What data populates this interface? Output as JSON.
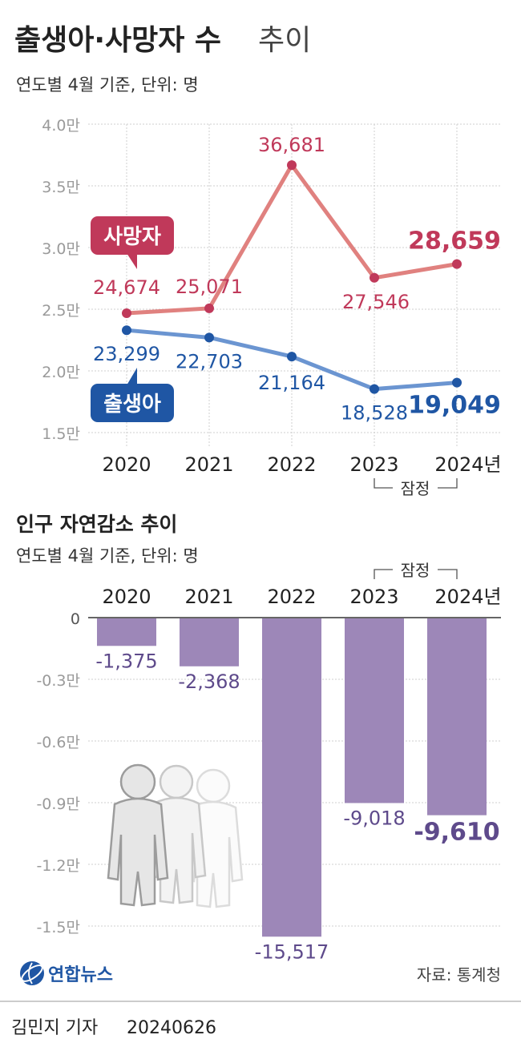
{
  "header": {
    "title_bold": "출생아·사망자 수",
    "title_light": "추이",
    "subtitle": "연도별 4월 기준, 단위: 명"
  },
  "chart_data": [
    {
      "type": "line",
      "categories": [
        "2020",
        "2021",
        "2022",
        "2023",
        "2024"
      ],
      "year_suffix": "년",
      "provisional_label": "잠정",
      "yticks": [
        "4.0만",
        "3.5만",
        "3.0만",
        "2.5만",
        "2.0만",
        "1.5만"
      ],
      "ylim": [
        15000,
        40000
      ],
      "series": [
        {
          "name": "사망자",
          "values": [
            24674,
            25071,
            36681,
            27546,
            28659
          ],
          "labels": [
            "24,674",
            "25,071",
            "36,681",
            "27,546",
            "28,659"
          ],
          "line_color": "#e0817f",
          "point_color": "#c0395a",
          "label_color": "#c0395a"
        },
        {
          "name": "출생아",
          "values": [
            23299,
            22703,
            21164,
            18528,
            19049
          ],
          "labels": [
            "23,299",
            "22,703",
            "21,164",
            "18,528",
            "19,049"
          ],
          "line_color": "#6b95d1",
          "point_color": "#1f56a4",
          "label_color": "#1f56a4"
        }
      ],
      "grid": true
    },
    {
      "type": "bar",
      "title": "인구 자연감소 추이",
      "subtitle": "연도별 4월 기준, 단위: 명",
      "categories": [
        "2020",
        "2021",
        "2022",
        "2023",
        "2024"
      ],
      "year_suffix": "년",
      "provisional_label": "잠정",
      "yticks": [
        "0",
        "-0.3만",
        "-0.6만",
        "-0.9만",
        "-1.2만",
        "-1.5만"
      ],
      "ylim": [
        -15000,
        0
      ],
      "values": [
        -1375,
        -2368,
        -15517,
        -9018,
        -9610
      ],
      "labels": [
        "-1,375",
        "-2,368",
        "-15,517",
        "-9,018",
        "-9,610"
      ],
      "bar_color": "#9d87b8",
      "label_color": "#5e4a8b",
      "grid": true
    }
  ],
  "footer": {
    "brand": "연합뉴스",
    "source": "자료: 통계청",
    "credit": "김민지 기자",
    "date": "20240626"
  },
  "colors": {
    "grid": "#cfcfcf",
    "tick_text": "#9a9a9a",
    "text": "#222222"
  },
  "icons": {
    "brand_logo": "yonhap-globe-logo",
    "decoration": "people-silhouettes"
  }
}
